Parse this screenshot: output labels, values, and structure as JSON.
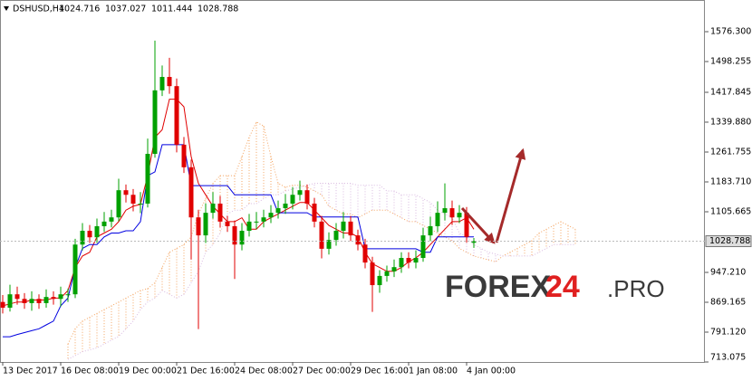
{
  "chart_data": {
    "type": "candlestick",
    "symbol": "DSHUSD,H4",
    "brand": {
      "name": "FOREX",
      "number": "24",
      "suffix": ".PRO"
    },
    "bull_color": "#00a000",
    "bear_color": "#e00000",
    "open": [
      870,
      855,
      890,
      878,
      867,
      878,
      867,
      883,
      878,
      890,
      890,
      1020,
      1056,
      1039,
      1068,
      1080,
      1091,
      1162,
      1150,
      1127,
      1127,
      1257,
      1423,
      1458,
      1434,
      1281,
      1222,
      1091,
      1044,
      1103,
      1127,
      1080,
      1068,
      1020,
      1056,
      1080,
      1080,
      1091,
      1103,
      1115,
      1127,
      1150,
      1162,
      1127,
      1080,
      1009,
      1032,
      1056,
      1080,
      1044,
      1020,
      973,
      914,
      938,
      950,
      961,
      985,
      973,
      985,
      1044,
      1068,
      1103,
      1115,
      1091,
      1103,
      1024.716
    ],
    "high": [
      888,
      915,
      910,
      893,
      898,
      890,
      903,
      898,
      910,
      905,
      1035,
      1076,
      1071,
      1088,
      1105,
      1111,
      1192,
      1177,
      1165,
      1157,
      1297,
      1553,
      1488,
      1508,
      1454,
      1301,
      1242,
      1111,
      1128,
      1157,
      1147,
      1095,
      1083,
      1076,
      1100,
      1105,
      1111,
      1123,
      1135,
      1152,
      1170,
      1187,
      1177,
      1142,
      1095,
      1052,
      1076,
      1105,
      1095,
      1059,
      1035,
      988,
      953,
      965,
      981,
      1000,
      1000,
      1005,
      1064,
      1093,
      1133,
      1180,
      1135,
      1123,
      1118,
      1037.027
    ],
    "low": [
      840,
      845,
      863,
      852,
      847,
      852,
      855,
      863,
      858,
      870,
      880,
      1005,
      1024,
      1024,
      1053,
      1065,
      1081,
      1130,
      1107,
      1102,
      1117,
      1247,
      1408,
      1414,
      1261,
      1207,
      981,
      799,
      1024,
      1088,
      1065,
      1053,
      930,
      1005,
      1041,
      1060,
      1065,
      1076,
      1088,
      1100,
      1112,
      1135,
      1112,
      1065,
      984,
      994,
      1017,
      1036,
      1029,
      1005,
      958,
      844,
      894,
      923,
      935,
      946,
      958,
      958,
      975,
      1029,
      1053,
      1083,
      1071,
      1076,
      1025,
      1011.444
    ],
    "close": [
      855,
      890,
      878,
      867,
      878,
      867,
      883,
      878,
      890,
      890,
      1020,
      1056,
      1039,
      1068,
      1080,
      1091,
      1162,
      1150,
      1127,
      1127,
      1257,
      1423,
      1458,
      1434,
      1281,
      1222,
      1091,
      1044,
      1103,
      1127,
      1080,
      1068,
      1020,
      1056,
      1080,
      1080,
      1091,
      1103,
      1115,
      1127,
      1150,
      1162,
      1127,
      1080,
      1009,
      1032,
      1056,
      1080,
      1044,
      1020,
      973,
      914,
      938,
      950,
      961,
      985,
      973,
      985,
      1044,
      1068,
      1103,
      1115,
      1091,
      1103,
      1040,
      1028.788
    ],
    "lines": [
      {
        "color": "#e00000",
        "values": [
          860,
          865,
          870,
          870,
          875,
          875,
          875,
          880,
          880,
          900,
          960,
          990,
          1000,
          1040,
          1050,
          1060,
          1080,
          1110,
          1120,
          1125,
          1200,
          1300,
          1320,
          1400,
          1400,
          1380,
          1250,
          1180,
          1150,
          1120,
          1100,
          1080,
          1080,
          1090,
          1060,
          1060,
          1080,
          1090,
          1100,
          1110,
          1120,
          1130,
          1130,
          1110,
          1090,
          1070,
          1060,
          1050,
          1050,
          1040,
          1000,
          970,
          960,
          950,
          950,
          960,
          975,
          985,
          1000,
          1020,
          1040,
          1060,
          1080,
          1080,
          1090,
          1060
        ]
      },
      {
        "color": "#0000e0",
        "values": [
          779,
          779,
          785,
          790,
          795,
          800,
          810,
          820,
          860,
          880,
          960,
          1010,
          1020,
          1020,
          1040,
          1050,
          1050,
          1056,
          1056,
          1080,
          1200,
          1210,
          1281,
          1281,
          1281,
          1281,
          1174,
          1174,
          1174,
          1174,
          1174,
          1174,
          1150,
          1150,
          1150,
          1150,
          1150,
          1150,
          1103,
          1103,
          1103,
          1103,
          1103,
          1092,
          1092,
          1092,
          1092,
          1092,
          1092,
          1092,
          1009,
          1009,
          1009,
          1009,
          1009,
          1009,
          1009,
          1009,
          1000,
          1000,
          1040,
          1040,
          1040,
          1040,
          1040,
          1040
        ]
      }
    ],
    "cloud": {
      "up_color": "#f4a460",
      "down_color": "#d8b8e0",
      "span_a": [
        null,
        null,
        null,
        null,
        null,
        null,
        null,
        null,
        null,
        760,
        800,
        820,
        830,
        840,
        850,
        860,
        870,
        880,
        890,
        900,
        905,
        920,
        960,
        1000,
        1010,
        1020,
        1040,
        1100,
        1140,
        1180,
        1200,
        1200,
        1200,
        1250,
        1300,
        1340,
        1330,
        1250,
        1180,
        1170,
        1175,
        1175,
        1170,
        1160,
        1150,
        1120,
        1110,
        1100,
        1100,
        1090,
        1100,
        1110,
        1110,
        1110,
        1100,
        1090,
        1080,
        1080,
        1070,
        1060,
        1050,
        1040,
        1030,
        1010,
        1000,
        990,
        985,
        980,
        975,
        990,
        1000,
        1010,
        1020,
        1030,
        1050,
        1060,
        1070,
        1080,
        1070,
        1060
      ],
      "span_b": [
        null,
        null,
        null,
        null,
        null,
        null,
        null,
        null,
        null,
        720,
        730,
        740,
        745,
        750,
        760,
        770,
        780,
        800,
        820,
        850,
        870,
        880,
        900,
        890,
        880,
        890,
        920,
        950,
        1000,
        1020,
        1050,
        1100,
        1110,
        1110,
        1127,
        1127,
        1140,
        1150,
        1150,
        1160,
        1165,
        1170,
        1175,
        1180,
        1180,
        1180,
        1180,
        1180,
        1180,
        1175,
        1175,
        1175,
        1175,
        1160,
        1160,
        1150,
        1150,
        1150,
        1140,
        1130,
        1110,
        1100,
        1090,
        1050,
        1040,
        1020,
        1010,
        1000,
        995,
        990,
        990,
        990,
        990,
        990,
        1000,
        1010,
        1020,
        1020,
        1020,
        1020
      ]
    },
    "xlim": [
      -0.375,
      96.875
    ],
    "xticks": [
      {
        "value": 0,
        "label": "13 Dec 2017"
      },
      {
        "value": 8,
        "label": "16 Dec 08:00"
      },
      {
        "value": 16,
        "label": "19 Dec 00:00"
      },
      {
        "value": 24,
        "label": "21 Dec 16:00"
      },
      {
        "value": 32,
        "label": "24 Dec 08:00"
      },
      {
        "value": 40,
        "label": "27 Dec 00:00"
      },
      {
        "value": 48,
        "label": "29 Dec 16:00"
      },
      {
        "value": 56,
        "label": "1 Jan 08:00"
      },
      {
        "value": 64,
        "label": "4 Jan 00:00"
      }
    ],
    "ylim": [
      713.1,
      1659.1
    ],
    "yticks": [
      {
        "value": 1576.3,
        "label": "1576.300"
      },
      {
        "value": 1498.255,
        "label": "1498.255"
      },
      {
        "value": 1417.845,
        "label": "1417.845"
      },
      {
        "value": 1339.88,
        "label": "1339.880"
      },
      {
        "value": 1261.755,
        "label": "1261.755"
      },
      {
        "value": 1183.71,
        "label": "1183.710"
      },
      {
        "value": 1105.665,
        "label": "1105.665"
      },
      {
        "value": 947.21,
        "label": "947.210"
      },
      {
        "value": 869.165,
        "label": "869.165"
      },
      {
        "value": 791.12,
        "label": "791.120"
      },
      {
        "value": 713.075,
        "label": "713.075"
      }
    ]
  }
}
